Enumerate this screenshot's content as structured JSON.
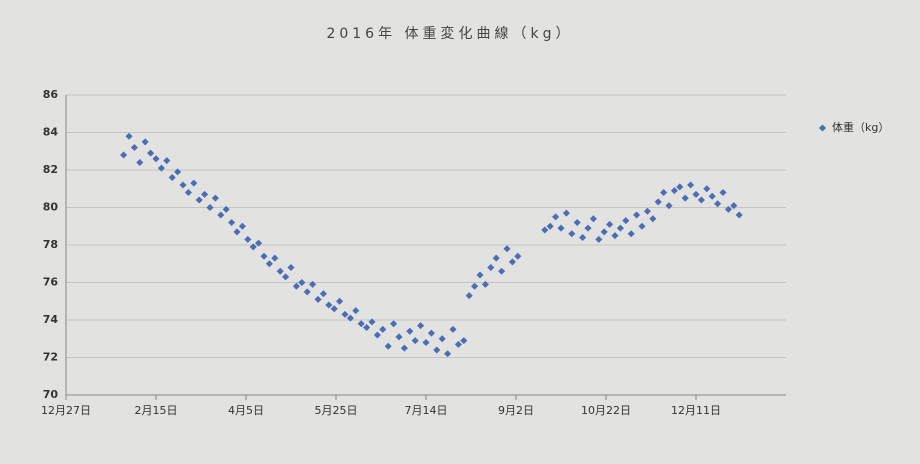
{
  "chart_data": {
    "type": "scatter",
    "title": "2016年 体重変化曲線（kg）",
    "legend": "right",
    "grid": true,
    "xlim": [
      0,
      400
    ],
    "xticks": [
      {
        "value": 0,
        "label": "12月27日"
      },
      {
        "value": 50,
        "label": "2月15日"
      },
      {
        "value": 100,
        "label": "4月5日"
      },
      {
        "value": 150,
        "label": "5月25日"
      },
      {
        "value": 200,
        "label": "7月14日"
      },
      {
        "value": 250,
        "label": "9月2日"
      },
      {
        "value": 300,
        "label": "10月22日"
      },
      {
        "value": 350,
        "label": "12月11日"
      }
    ],
    "ylim": [
      70,
      86
    ],
    "yticks": [
      70,
      72,
      74,
      76,
      78,
      80,
      82,
      84,
      86
    ],
    "series": [
      {
        "name": "体重（kg）",
        "color": "#4a6db4",
        "x": [
          32,
          35,
          38,
          41,
          44,
          47,
          50,
          53,
          56,
          59,
          62,
          65,
          68,
          71,
          74,
          77,
          80,
          83,
          86,
          89,
          92,
          95,
          98,
          101,
          104,
          107,
          110,
          113,
          116,
          119,
          122,
          125,
          128,
          131,
          134,
          137,
          140,
          143,
          146,
          149,
          152,
          155,
          158,
          161,
          164,
          167,
          170,
          173,
          176,
          179,
          182,
          185,
          188,
          191,
          194,
          197,
          200,
          203,
          206,
          209,
          212,
          215,
          218,
          221,
          224,
          227,
          230,
          233,
          236,
          239,
          242,
          245,
          248,
          251,
          266,
          269,
          272,
          275,
          278,
          281,
          284,
          287,
          290,
          293,
          296,
          299,
          302,
          305,
          308,
          311,
          314,
          317,
          320,
          323,
          326,
          329,
          332,
          335,
          338,
          341,
          344,
          347,
          350,
          353,
          356,
          359,
          362,
          365,
          368,
          371,
          374
        ],
        "values": [
          82.8,
          83.8,
          83.2,
          82.4,
          83.5,
          82.9,
          82.6,
          82.1,
          82.5,
          81.6,
          81.9,
          81.2,
          80.8,
          81.3,
          80.4,
          80.7,
          80.0,
          80.5,
          79.6,
          79.9,
          79.2,
          78.7,
          79.0,
          78.3,
          77.9,
          78.1,
          77.4,
          77.0,
          77.3,
          76.6,
          76.3,
          76.8,
          75.8,
          76.0,
          75.5,
          75.9,
          75.1,
          75.4,
          74.8,
          74.6,
          75.0,
          74.3,
          74.1,
          74.5,
          73.8,
          73.6,
          73.9,
          73.2,
          73.5,
          72.6,
          73.8,
          73.1,
          72.5,
          73.4,
          72.9,
          73.7,
          72.8,
          73.3,
          72.4,
          73.0,
          72.2,
          73.5,
          72.7,
          72.9,
          75.3,
          75.8,
          76.4,
          75.9,
          76.8,
          77.3,
          76.6,
          77.8,
          77.1,
          77.4,
          78.8,
          79.0,
          79.5,
          78.9,
          79.7,
          78.6,
          79.2,
          78.4,
          78.9,
          79.4,
          78.3,
          78.7,
          79.1,
          78.5,
          78.9,
          79.3,
          78.6,
          79.6,
          79.0,
          79.8,
          79.4,
          80.3,
          80.8,
          80.1,
          80.9,
          81.1,
          80.5,
          81.2,
          80.7,
          80.4,
          81.0,
          80.6,
          80.2,
          80.8,
          79.9,
          80.1,
          79.6
        ]
      }
    ]
  }
}
